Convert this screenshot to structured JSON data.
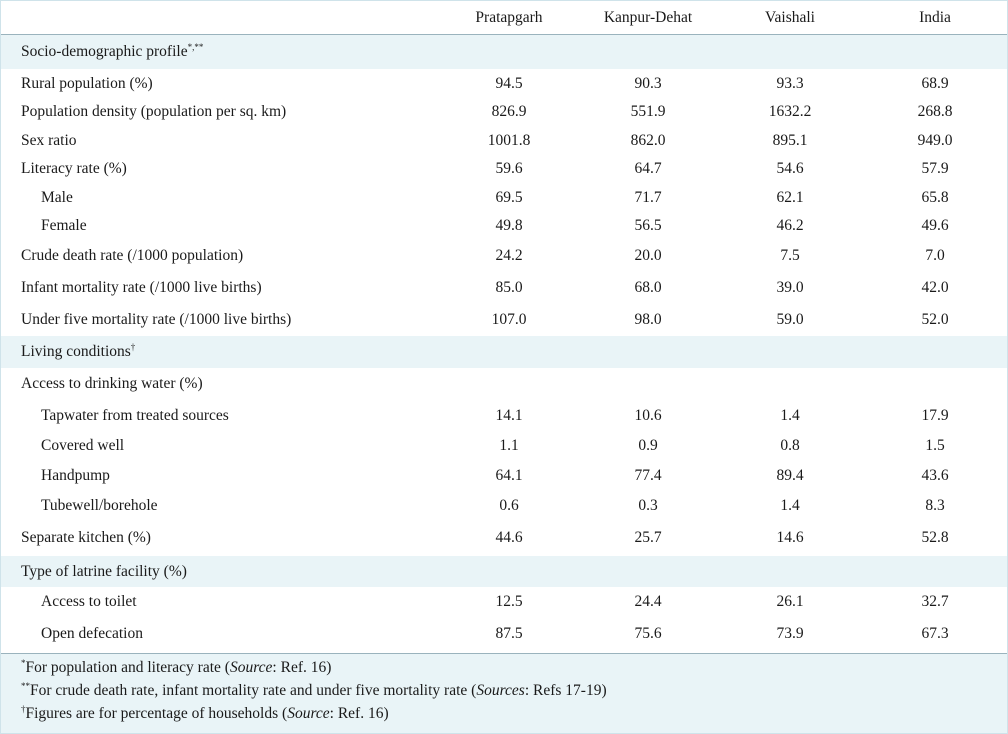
{
  "header": {
    "columns": [
      "Pratapgarh",
      "Kanpur-Dehat",
      "Vaishali",
      "India"
    ]
  },
  "sections": {
    "socio": {
      "label": "Socio-demographic profile",
      "mark": "*,**",
      "rows": [
        {
          "label": "Rural population (%)",
          "values": [
            "94.5",
            "90.3",
            "93.3",
            "68.9"
          ]
        },
        {
          "label": "Population density (population per sq. km)",
          "values": [
            "826.9",
            "551.9",
            "1632.2",
            "268.8"
          ]
        },
        {
          "label": "Sex ratio",
          "values": [
            "1001.8",
            "862.0",
            "895.1",
            "949.0"
          ]
        },
        {
          "label": "Literacy rate (%)",
          "values": [
            "59.6",
            "64.7",
            "54.6",
            "57.9"
          ]
        },
        {
          "label": "Male",
          "values": [
            "69.5",
            "71.7",
            "62.1",
            "65.8"
          ]
        },
        {
          "label": "Female",
          "values": [
            "49.8",
            "56.5",
            "46.2",
            "49.6"
          ]
        },
        {
          "label": "Crude death rate (/1000 population)",
          "values": [
            "24.2",
            "20.0",
            "7.5",
            "7.0"
          ]
        },
        {
          "label": "Infant mortality rate (/1000 live births)",
          "values": [
            "85.0",
            "68.0",
            "39.0",
            "42.0"
          ]
        },
        {
          "label": "Under five mortality rate (/1000 live births)",
          "values": [
            "107.0",
            "98.0",
            "59.0",
            "52.0"
          ]
        }
      ]
    },
    "living": {
      "label": "Living conditions",
      "mark": "†",
      "water_label": "Access to drinking water (%)",
      "rows": [
        {
          "label": "Tapwater from treated sources",
          "values": [
            "14.1",
            "10.6",
            "1.4",
            "17.9"
          ]
        },
        {
          "label": "Covered well",
          "values": [
            "1.1",
            "0.9",
            "0.8",
            "1.5"
          ]
        },
        {
          "label": "Handpump",
          "values": [
            "64.1",
            "77.4",
            "89.4",
            "43.6"
          ]
        },
        {
          "label": "Tubewell/borehole",
          "values": [
            "0.6",
            "0.3",
            "1.4",
            "8.3"
          ]
        },
        {
          "label": "Separate kitchen (%)",
          "values": [
            "44.6",
            "25.7",
            "14.6",
            "52.8"
          ]
        }
      ]
    },
    "latrine": {
      "label": "Type of latrine facility (%)",
      "rows": [
        {
          "label": "Access to toilet",
          "values": [
            "12.5",
            "24.4",
            "26.1",
            "32.7"
          ]
        },
        {
          "label": "Open defecation",
          "values": [
            "87.5",
            "75.6",
            "73.9",
            "67.3"
          ]
        }
      ]
    }
  },
  "footnotes": [
    {
      "mark": "*",
      "text": "For population and literacy rate (",
      "source_label": "Source",
      "source_ref": ": Ref. 16)"
    },
    {
      "mark": "**",
      "text": "For crude death rate, infant mortality rate and under five mortality rate (",
      "source_label": "Sources",
      "source_ref": ": Refs 17-19)"
    },
    {
      "mark": "†",
      "text": "Figures are for percentage of households (",
      "source_label": "Source",
      "source_ref": ": Ref. 16)"
    }
  ]
}
